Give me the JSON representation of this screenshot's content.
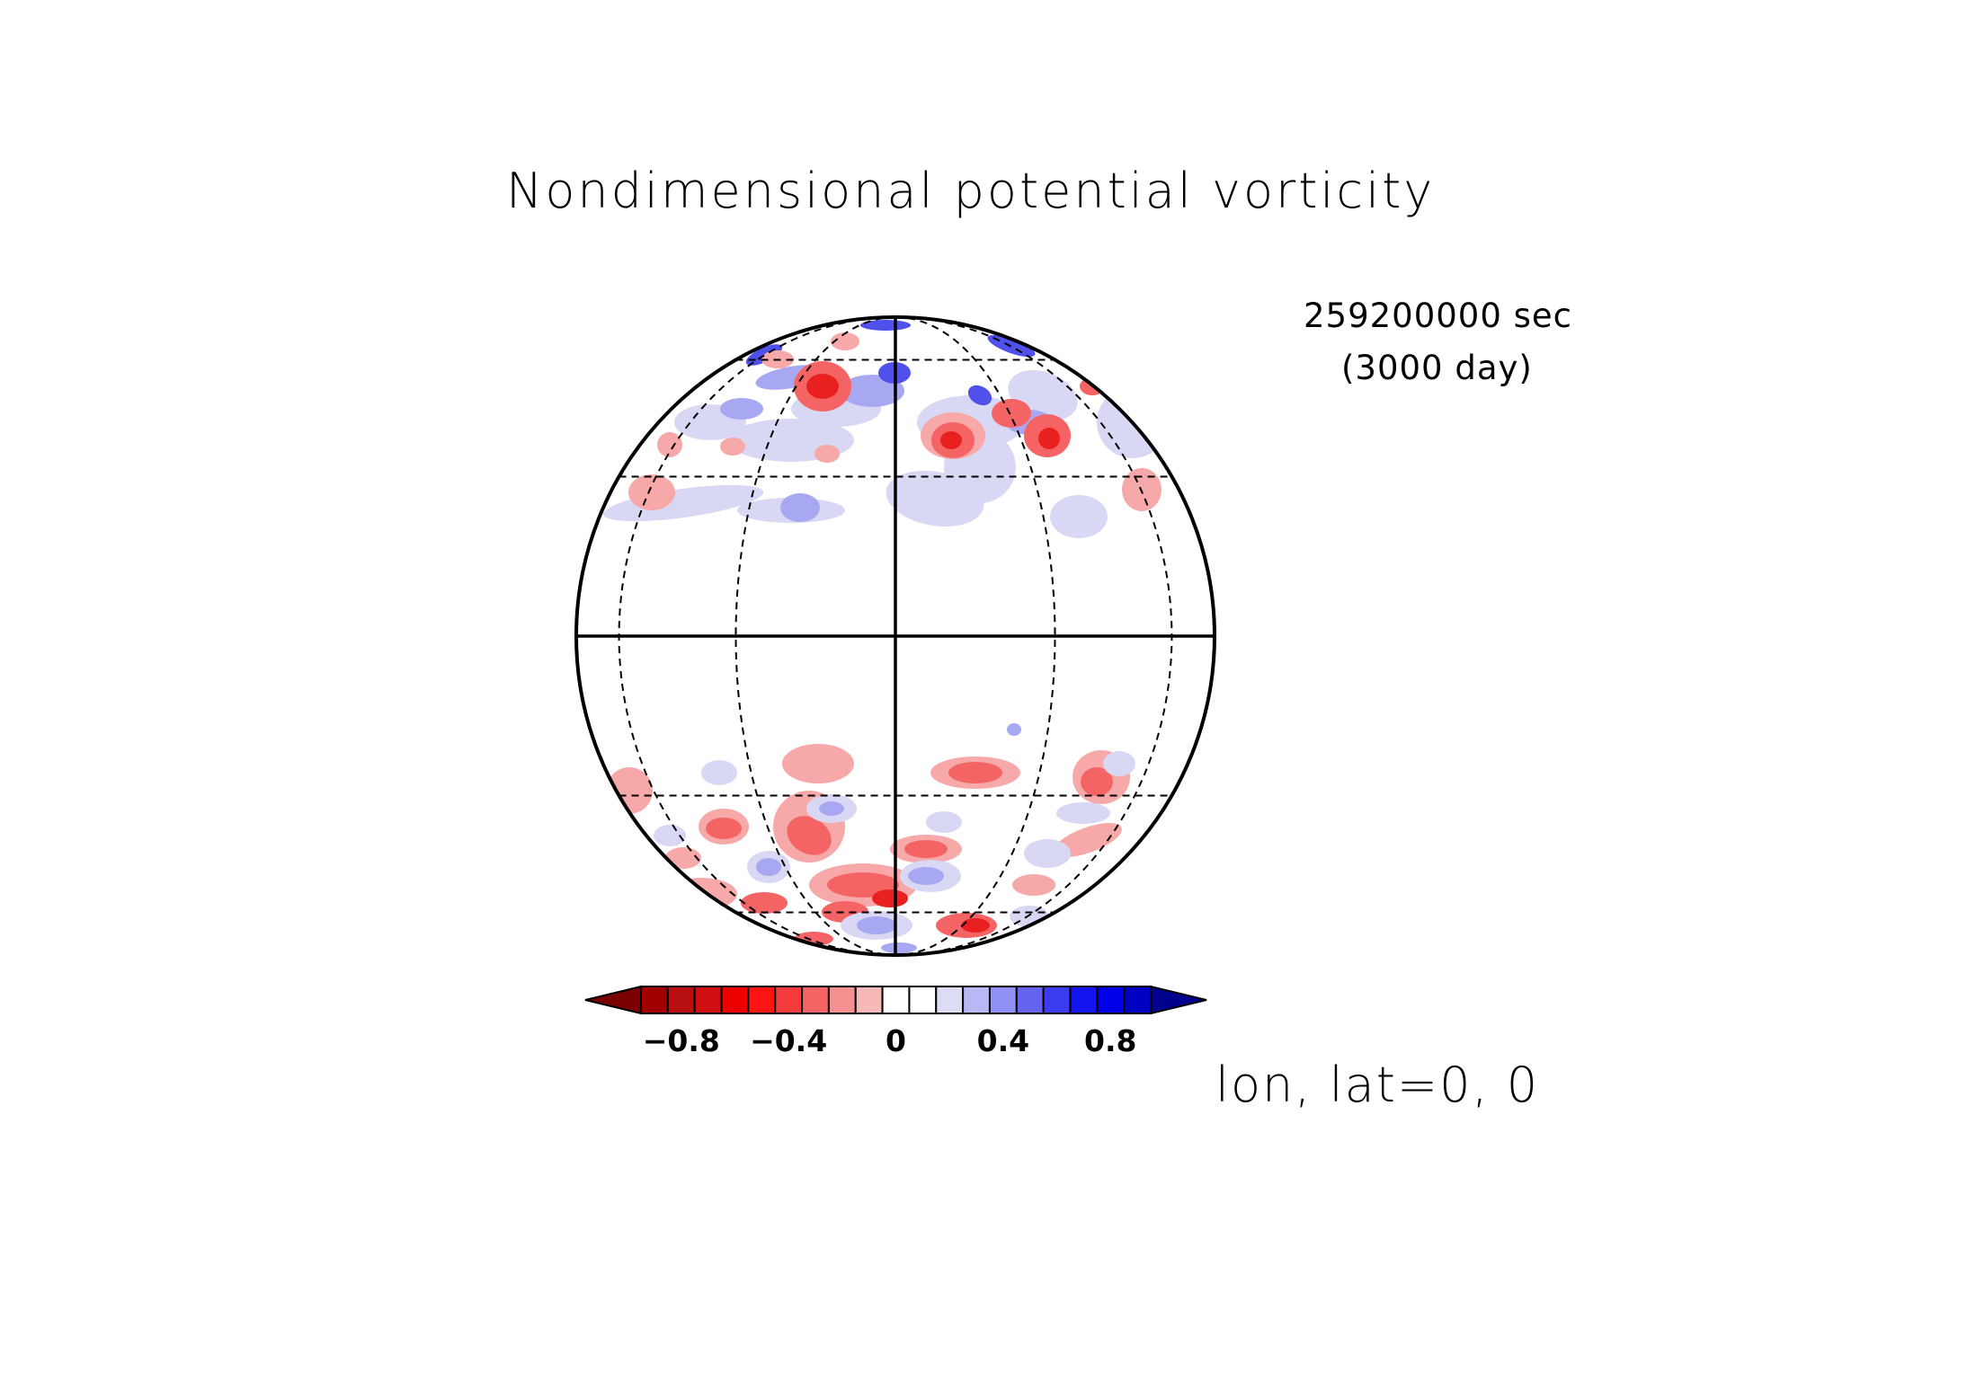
{
  "title": "Nondimensional potential vorticity",
  "time": {
    "seconds_label": "259200000 sec",
    "days_label": "(3000 day)"
  },
  "projection_label": "lon, lat=0, 0",
  "colorbar": {
    "tick_labels": [
      "−0.8",
      "−0.4",
      "0",
      "0.4",
      "0.8"
    ],
    "tick_values": [
      -0.8,
      -0.4,
      0,
      0.4,
      0.8
    ],
    "colors": [
      "#7a0000",
      "#a00000",
      "#b81010",
      "#d01010",
      "#ec0000",
      "#ff1414",
      "#f53c3c",
      "#f56464",
      "#f59090",
      "#f7b8b8",
      "#ffffff",
      "#ffffff",
      "#dcdcf5",
      "#b8b8f5",
      "#9090f5",
      "#6464f0",
      "#3c3cf0",
      "#1414f0",
      "#0000e8",
      "#0000c0",
      "#000090"
    ],
    "range": [
      -1.0,
      1.0
    ],
    "extend": "both"
  },
  "map": {
    "projection": "orthographic",
    "center_lon": 0,
    "center_lat": 0,
    "graticule_lats": [
      -60,
      -30,
      30,
      60
    ],
    "graticule_lons": [
      -60,
      -30,
      30,
      60
    ],
    "field_colors": {
      "neg_strong": "#e82020",
      "neg_mid": "#f56464",
      "neg_weak": "#f7a8a8",
      "pos_weak": "#d8d8f5",
      "pos_mid": "#a8a8f2",
      "pos_strong": "#5050ea"
    }
  }
}
